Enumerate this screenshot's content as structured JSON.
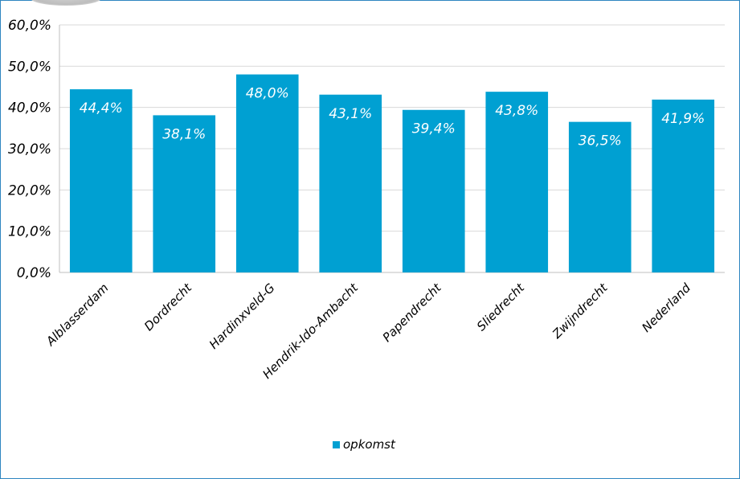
{
  "chart_data": {
    "type": "bar",
    "categories": [
      "Alblasserdam",
      "Dordrecht",
      "Hardinxveld-G",
      "Hendrik-Ido-Ambacht",
      "Papendrecht",
      "Sliedrecht",
      "Zwijndrecht",
      "Nederland"
    ],
    "series": [
      {
        "name": "opkomst",
        "values": [
          44.4,
          38.1,
          48.0,
          43.1,
          39.4,
          43.8,
          36.5,
          41.9
        ],
        "labels": [
          "44,4%",
          "38,1%",
          "48,0%",
          "43,1%",
          "39,4%",
          "43,8%",
          "36,5%",
          "41,9%"
        ],
        "color": "#00a0d2"
      }
    ],
    "ylim": [
      0,
      60
    ],
    "yticks": [
      0,
      10,
      20,
      30,
      40,
      50,
      60
    ],
    "ytick_labels": [
      "0,0%",
      "10,0%",
      "20,0%",
      "30,0%",
      "40,0%",
      "50,0%",
      "60,0%"
    ],
    "title": "",
    "xlabel": "",
    "ylabel": "",
    "grid": true,
    "legend_position": "bottom-center",
    "gridline_color": "#d9d9d9",
    "frame_color": "#2e86c1"
  }
}
